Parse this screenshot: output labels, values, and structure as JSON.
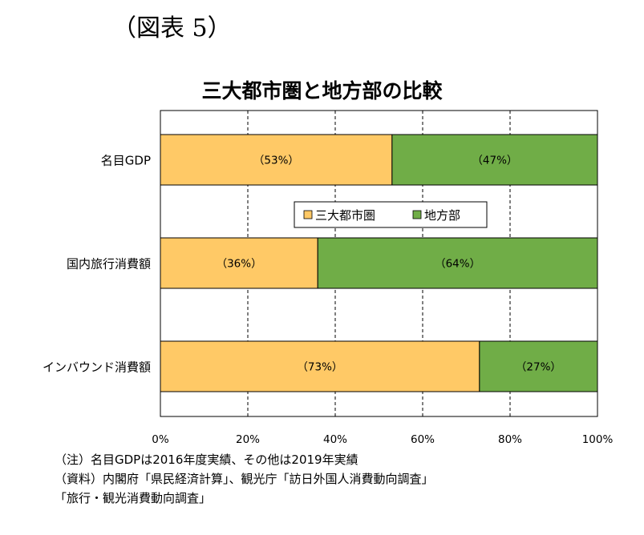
{
  "figure_label": "（図表 5）",
  "chart_data": {
    "type": "bar",
    "orientation": "horizontal",
    "stacked": true,
    "percent_stacked": true,
    "title": "三大都市圏と地方部の比較",
    "categories": [
      "名目GDP",
      "国内旅行消費額",
      "インバウンド消費額"
    ],
    "series": [
      {
        "name": "三大都市圏",
        "color": "#FFC966",
        "values": [
          53,
          36,
          73
        ],
        "labels": [
          "（53%）",
          "（36%）",
          "（73%）"
        ]
      },
      {
        "name": "地方部",
        "color": "#70AD47",
        "values": [
          47,
          64,
          27
        ],
        "labels": [
          "（47%）",
          "（64%）",
          "（27%）"
        ]
      }
    ],
    "xlim": [
      0,
      100
    ],
    "x_ticks": [
      0,
      20,
      40,
      60,
      80,
      100
    ],
    "x_tick_labels": [
      "0%",
      "20%",
      "40%",
      "60%",
      "80%",
      "100%"
    ],
    "grid": "vertical dashed",
    "legend_position": "center"
  },
  "notes": [
    "（注）名目GDPは2016年度実績、その他は2019年実績",
    "（資料）内閣府「県民経済計算」、観光庁「訪日外国人消費動向調査」",
    "「旅行・観光消費動向調査」"
  ]
}
